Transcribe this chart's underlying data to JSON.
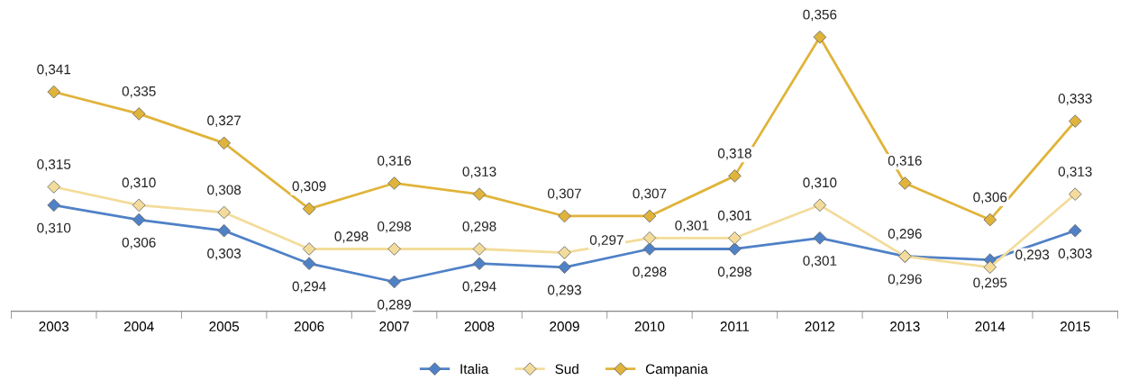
{
  "chart_data": {
    "type": "line",
    "categories": [
      "2003",
      "2004",
      "2005",
      "2006",
      "2007",
      "2008",
      "2009",
      "2010",
      "2011",
      "2012",
      "2013",
      "2014",
      "2015"
    ],
    "series": [
      {
        "name": "Italia",
        "color": "#4f81c7",
        "values": [
          0.31,
          0.306,
          0.303,
          0.294,
          0.289,
          0.294,
          0.293,
          0.298,
          0.298,
          0.301,
          0.296,
          0.295,
          0.303
        ],
        "value_labels": [
          "0,310",
          "0,306",
          "0,303",
          "0,294",
          "0,289",
          "0,294",
          "0,293",
          "0,298",
          "0,298",
          "0,301",
          "0,296",
          "0,295",
          "0,303"
        ]
      },
      {
        "name": "Sud",
        "color": "#f3dc9b",
        "values": [
          0.315,
          0.31,
          0.308,
          0.298,
          0.298,
          0.298,
          0.297,
          0.301,
          0.301,
          0.31,
          0.296,
          0.293,
          0.313
        ],
        "value_labels": [
          "0,315",
          "0,310",
          "0,308",
          "0,298",
          "0,298",
          "0,298",
          "0,297",
          "0,301",
          "0,301",
          "0,310",
          "0,296",
          "0,293",
          "0,313"
        ]
      },
      {
        "name": "Campania",
        "color": "#e0b43a",
        "values": [
          0.341,
          0.335,
          0.327,
          0.309,
          0.316,
          0.313,
          0.307,
          0.307,
          0.318,
          0.356,
          0.316,
          0.306,
          0.333
        ],
        "value_labels": [
          "0,341",
          "0,335",
          "0,327",
          "0,309",
          "0,316",
          "0,313",
          "0,307",
          "0,307",
          "0,318",
          "0,356",
          "0,316",
          "0,306",
          "0,333"
        ]
      }
    ],
    "marker": "diamond",
    "grid": false,
    "legend": "bottom"
  }
}
